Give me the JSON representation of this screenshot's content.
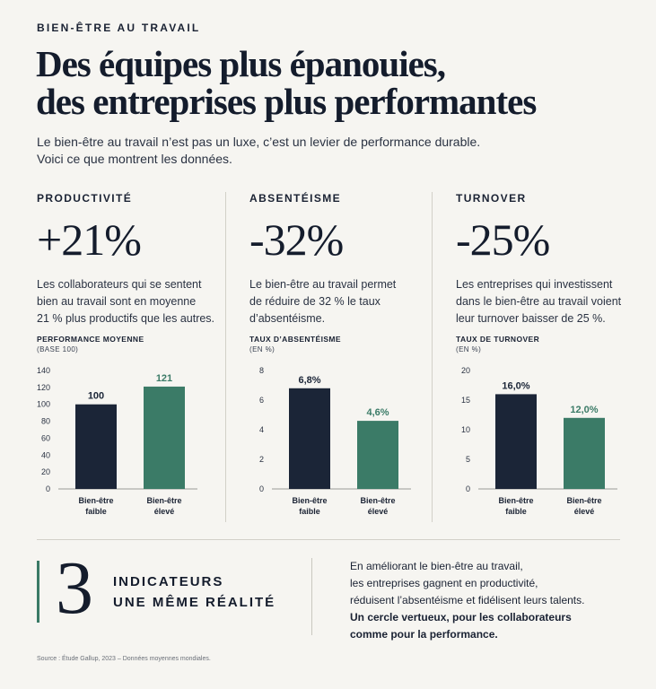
{
  "kicker": "BIEN-ÊTRE AU TRAVAIL",
  "headline": {
    "line1": "Des équipes plus épanouies,",
    "line2": "des entreprises plus performantes"
  },
  "intro": {
    "line1": "Le bien-être au travail n’est pas un luxe, c’est un levier de performance durable.",
    "line2": "Voici ce que montrent les données."
  },
  "stats": [
    {
      "label": "PRODUCTIVITÉ",
      "value": "+21%",
      "desc": [
        "Les collaborateurs qui se sentent",
        "bien au travail sont en moyenne",
        "21 % plus productifs que les autres."
      ]
    },
    {
      "label": "ABSENTÉISME",
      "value": "-32%",
      "desc": [
        "Le bien-être au travail permet",
        "de réduire de 32 % le taux",
        "d’absentéisme."
      ]
    },
    {
      "label": "TURNOVER",
      "value": "-25%",
      "desc": [
        "Les entreprises qui investissent",
        "dans le bien-être au travail voient",
        "leur turnover baisser de 25 %."
      ]
    }
  ],
  "colors": {
    "dark": "#1b2537",
    "green": "#3b7b67",
    "accent": "#3a7a66",
    "background": "#f6f5f1"
  },
  "chart_data": [
    {
      "type": "bar",
      "title": "PERFORMANCE MOYENNE",
      "subtitle": "(BASE 100)",
      "categories": [
        [
          "Bien-être",
          "faible"
        ],
        [
          "Bien-être",
          "élevé"
        ]
      ],
      "values": [
        100,
        121
      ],
      "value_labels": [
        "100",
        "121"
      ],
      "ylim": [
        0,
        140
      ],
      "yticks": [
        0,
        20,
        40,
        60,
        80,
        100,
        120,
        140
      ],
      "ytick_labels": [
        "0",
        "20",
        "40",
        "60",
        "80",
        "100",
        "120",
        "140"
      ]
    },
    {
      "type": "bar",
      "title": "TAUX D’ABSENTÉISME",
      "subtitle": "(EN %)",
      "categories": [
        [
          "Bien-être",
          "faible"
        ],
        [
          "Bien-être",
          "élevé"
        ]
      ],
      "values": [
        6.8,
        4.6
      ],
      "value_labels": [
        "6,8%",
        "4,6%"
      ],
      "ylim": [
        0,
        8
      ],
      "yticks": [
        0,
        2,
        4,
        6,
        8
      ],
      "ytick_labels": [
        "0",
        "2",
        "4",
        "6",
        "8"
      ]
    },
    {
      "type": "bar",
      "title": "TAUX DE TURNOVER",
      "subtitle": "(EN %)",
      "categories": [
        [
          "Bien-être",
          "faible"
        ],
        [
          "Bien-être",
          "élevé"
        ]
      ],
      "values": [
        16.0,
        12.0
      ],
      "value_labels": [
        "16,0%",
        "12,0%"
      ],
      "ylim": [
        0,
        20
      ],
      "yticks": [
        0,
        5,
        10,
        15,
        20
      ],
      "ytick_labels": [
        "0",
        "5",
        "10",
        "15",
        "20"
      ]
    }
  ],
  "summary": {
    "number": "3",
    "line1": "INDICATEURS",
    "line2": "UNE MÊME RÉALITÉ"
  },
  "conclusion": {
    "lines": [
      "En améliorant le bien-être au travail,",
      "les entreprises gagnent en productivité,",
      "réduisent l’absentéisme et fidélisent leurs talents."
    ],
    "strong": [
      "Un cercle vertueux, pour les collaborateurs",
      "comme pour la performance."
    ]
  },
  "source": "Source : Étude Gallup, 2023 – Données moyennes mondiales."
}
